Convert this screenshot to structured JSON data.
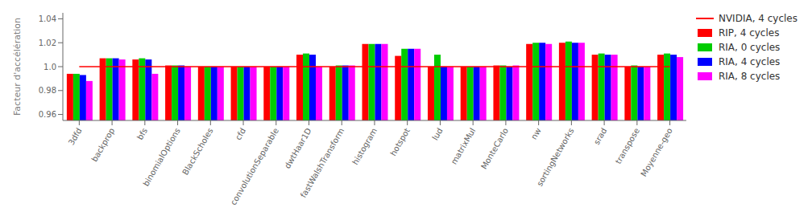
{
  "chart_data": {
    "type": "bar",
    "categories": [
      "3dfd",
      "backprop",
      "bfs",
      "binomialOptions",
      "BlackScholes",
      "cfd",
      "convolutionSeparable",
      "dwtHaar1D",
      "fastWalshTransform",
      "histogram",
      "hotspot",
      "lud",
      "matrixMul",
      "MonteCarlo",
      "nw",
      "sortingNetworks",
      "srad",
      "transpose",
      "Moyenne-geo"
    ],
    "series": [
      {
        "name": "NVIDIA, 4 cycles",
        "type": "line",
        "color": "#ff0000",
        "values": [
          1.0,
          1.0,
          1.0,
          1.0,
          1.0,
          1.0,
          1.0,
          1.0,
          1.0,
          1.0,
          1.0,
          1.0,
          1.0,
          1.0,
          1.0,
          1.0,
          1.0,
          1.0,
          1.0
        ]
      },
      {
        "name": "RIP, 4 cycles",
        "type": "bar",
        "color": "#ff0000",
        "values": [
          0.994,
          1.007,
          1.006,
          1.001,
          1.0,
          1.0,
          1.0,
          1.01,
          1.0,
          1.019,
          1.009,
          1.0,
          1.0,
          1.001,
          1.019,
          1.02,
          1.01,
          1.0,
          1.01
        ]
      },
      {
        "name": "RIA, 0 cycles",
        "type": "bar",
        "color": "#00cc00",
        "values": [
          0.994,
          1.007,
          1.007,
          1.001,
          1.0,
          1.0,
          1.0,
          1.011,
          1.001,
          1.019,
          1.015,
          1.01,
          1.0,
          1.001,
          1.02,
          1.021,
          1.011,
          1.001,
          1.011
        ]
      },
      {
        "name": "RIA, 4 cycles",
        "type": "bar",
        "color": "#0000ff",
        "values": [
          0.993,
          1.007,
          1.006,
          1.001,
          1.0,
          1.0,
          1.0,
          1.01,
          1.001,
          1.019,
          1.015,
          1.0,
          1.0,
          1.0,
          1.02,
          1.02,
          1.01,
          1.0,
          1.01
        ]
      },
      {
        "name": "RIA, 8 cycles",
        "type": "bar",
        "color": "#ff00ff",
        "values": [
          0.988,
          1.006,
          0.994,
          1.0,
          1.0,
          1.0,
          1.0,
          1.0,
          1.001,
          1.019,
          1.015,
          1.0,
          1.0,
          1.001,
          1.019,
          1.02,
          1.01,
          1.0,
          1.008
        ]
      }
    ],
    "ylabel": "Facteur d'accélération",
    "ylim": [
      0.955,
      1.045
    ],
    "yticks": [
      0.96,
      0.98,
      {
        "value": 1.0,
        "label": "1.0"
      },
      1.02,
      1.04
    ],
    "grid": false,
    "legend": "right"
  }
}
